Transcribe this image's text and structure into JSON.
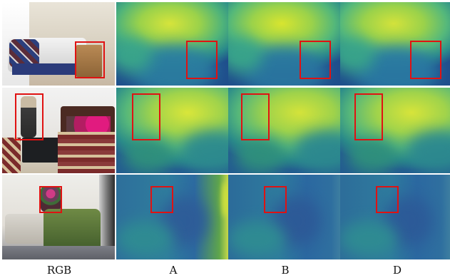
{
  "columns": [
    {
      "label": "RGB"
    },
    {
      "label": "A"
    },
    {
      "label": "B"
    },
    {
      "label": "D"
    }
  ],
  "colors": {
    "box": "#e01212",
    "depth_dark": "#1f4e8c",
    "depth_mid": "#2a8a8a",
    "depth_light": "#7ac94a",
    "depth_bright": "#cfe02d"
  }
}
